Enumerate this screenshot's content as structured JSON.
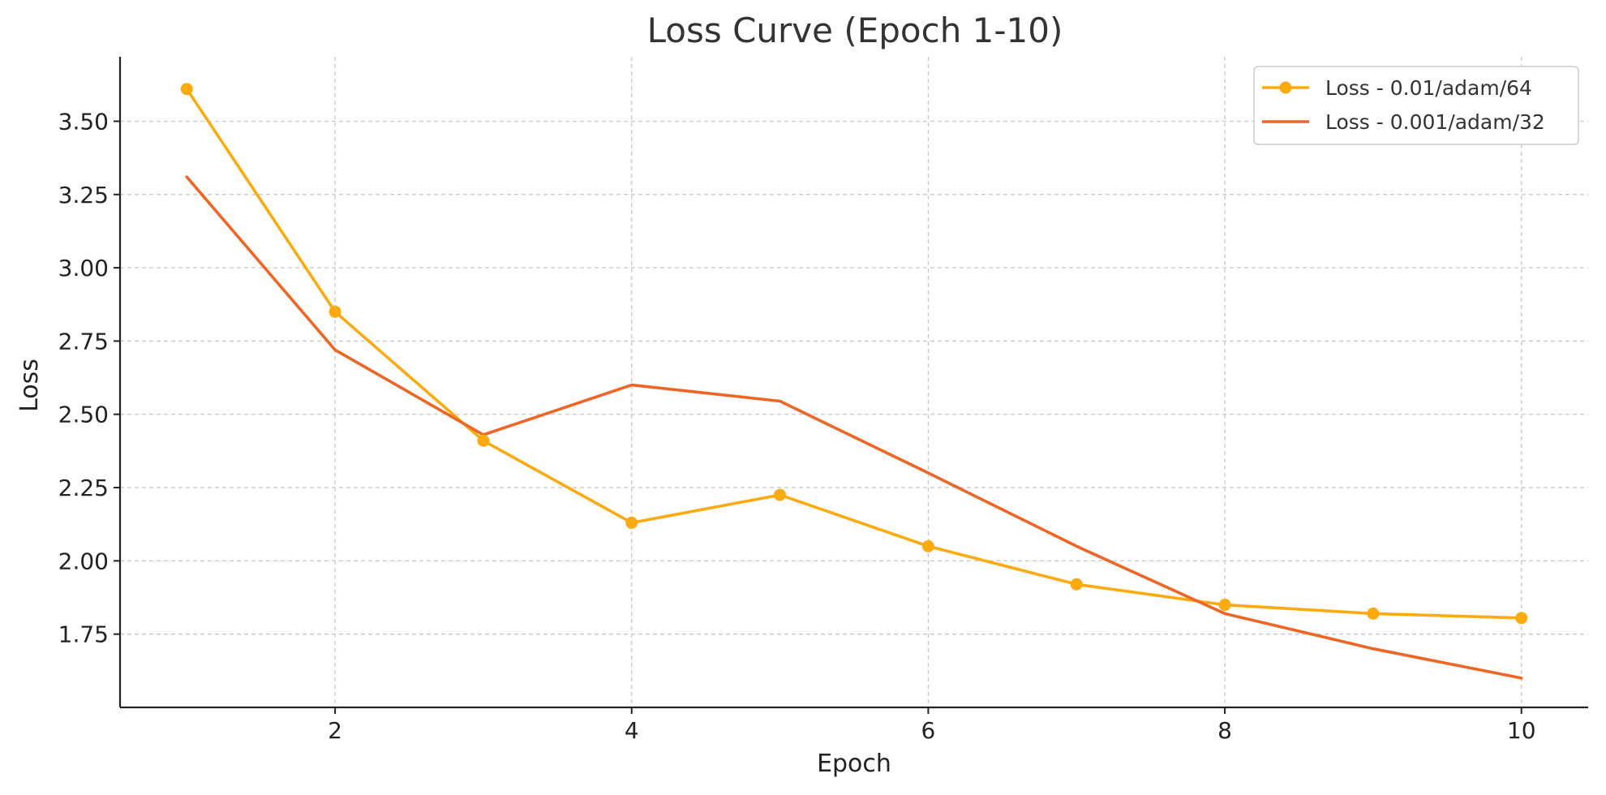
{
  "chart_data": {
    "type": "line",
    "title": "Loss Curve (Epoch 1-10)",
    "xlabel": "Epoch",
    "ylabel": "Loss",
    "xlim": [
      0.55,
      10.45
    ],
    "ylim": [
      1.5,
      3.72
    ],
    "x_ticks": [
      2,
      4,
      6,
      8,
      10
    ],
    "x_tick_labels": [
      "2",
      "4",
      "6",
      "8",
      "10"
    ],
    "y_ticks": [
      1.75,
      2.0,
      2.25,
      2.5,
      2.75,
      3.0,
      3.25,
      3.5
    ],
    "y_tick_labels": [
      "1.75",
      "2.00",
      "2.25",
      "2.50",
      "2.75",
      "3.00",
      "3.25",
      "3.50"
    ],
    "grid": true,
    "legend_position": "top-right",
    "x": [
      1,
      2,
      3,
      4,
      5,
      6,
      7,
      8,
      9,
      10
    ],
    "series": [
      {
        "name": "Loss - 0.01/adam/64",
        "values": [
          3.61,
          2.85,
          2.41,
          2.13,
          2.225,
          2.05,
          1.92,
          1.85,
          1.82,
          1.805
        ],
        "color": "#FBAA0F",
        "markers": true
      },
      {
        "name": "Loss - 0.001/adam/32",
        "values": [
          3.31,
          2.72,
          2.43,
          2.6,
          2.545,
          2.3,
          2.05,
          1.82,
          1.7,
          1.6
        ],
        "color": "#EE6626",
        "markers": false
      }
    ]
  }
}
